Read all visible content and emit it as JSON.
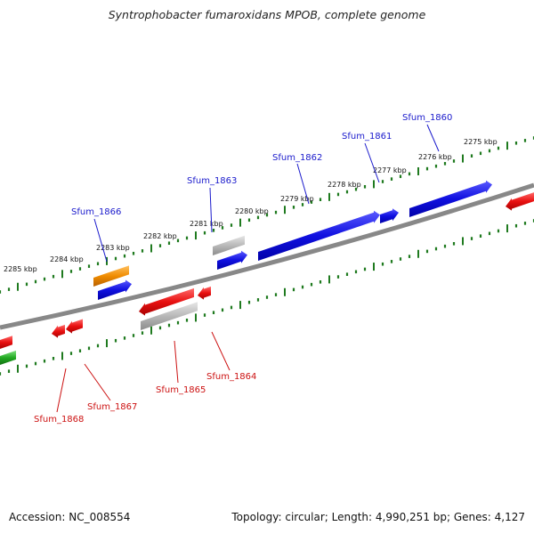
{
  "title": "Syntrophobacter fumaroxidans MPOB, complete genome",
  "footer": {
    "accession": "Accession: NC_008554",
    "summary": "Topology: circular; Length: 4,990,251 bp; Genes: 4,127"
  },
  "colors": {
    "backbone": "#888888",
    "tick_track": "#1f7a1f",
    "forward_label": "#1a1acc",
    "reverse_label": "#cc1111",
    "blue_gene": "#1010e0",
    "red_gene": "#e81010",
    "gray_gene": "#b8b8b8",
    "orange_gene": "#f08c00",
    "green_gene": "#22aa22"
  },
  "scale_labels": [
    "2275 kbp",
    "2276 kbp",
    "2277 kbp",
    "2278 kbp",
    "2279 kbp",
    "2280 kbp",
    "2281 kbp",
    "2282 kbp",
    "2283 kbp",
    "2284 kbp",
    "2285 kbp"
  ],
  "gene_labels": {
    "forward": [
      "Sfum_1860",
      "Sfum_1861",
      "Sfum_1862",
      "Sfum_1863",
      "Sfum_1866"
    ],
    "reverse": [
      "Sfum_1864",
      "Sfum_1865",
      "Sfum_1867",
      "Sfum_1868"
    ]
  }
}
